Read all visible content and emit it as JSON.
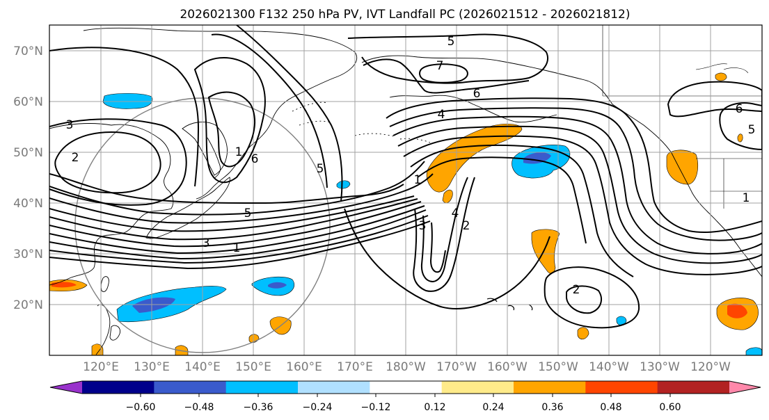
{
  "title": "2026021300 F132 250 hPa PV, IVT Landfall PC (2026021512 - 2026021812)",
  "map": {
    "lat_labels": [
      "70°N",
      "60°N",
      "50°N",
      "40°N",
      "30°N",
      "20°N"
    ],
    "lon_labels": [
      "120°E",
      "130°E",
      "140°E",
      "150°E",
      "160°E",
      "170°E",
      "180°W",
      "170°W",
      "160°W",
      "150°W",
      "140°W",
      "130°W",
      "120°W"
    ],
    "gridline_color": "#a0a0a0",
    "contour_color": "#000000",
    "contour_labels": [
      "5",
      "7",
      "6",
      "4",
      "3",
      "2",
      "1",
      "6",
      "5",
      "5",
      "3",
      "1",
      "1",
      "3",
      "4",
      "2",
      "2",
      "6",
      "5",
      "1"
    ]
  },
  "colorbar": {
    "ticks": [
      "−0.60",
      "−0.48",
      "−0.36",
      "−0.24",
      "−0.12",
      "0.12",
      "0.24",
      "0.36",
      "0.48",
      "0.60"
    ],
    "colors": [
      "#9932cc",
      "#00008b",
      "#3a5bcc",
      "#00bfff",
      "#b0e0ff",
      "#ffffff",
      "#ffeb8a",
      "#ffa500",
      "#ff4500",
      "#b22222",
      "#ff88aa"
    ]
  }
}
